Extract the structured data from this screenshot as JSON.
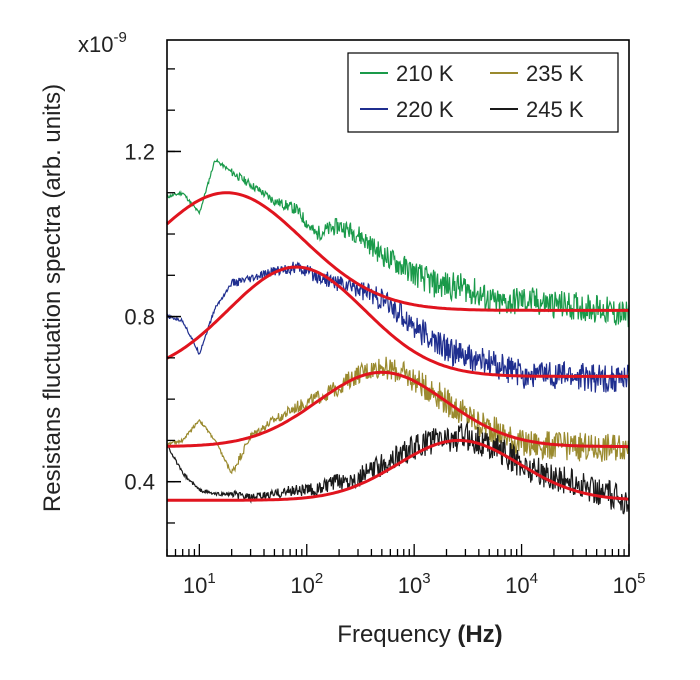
{
  "chart_data": {
    "type": "line",
    "x_scale": "log",
    "xlim": [
      5,
      100000
    ],
    "ylim": [
      0.22,
      1.47
    ],
    "y_multiplier": "x10",
    "y_multiplier_exp": "-9",
    "xlabel": "Frequency",
    "xlabel_unit": "(Hz)",
    "ylabel": "Resistans fluctuation spectra (arb. units)",
    "yticks": [
      {
        "value": 0.4,
        "label": "0.4"
      },
      {
        "value": 0.8,
        "label": "0.8"
      },
      {
        "value": 1.2,
        "label": "1.2"
      }
    ],
    "xticks": [
      {
        "value": 10,
        "base": "10",
        "exp": "1"
      },
      {
        "value": 100,
        "base": "10",
        "exp": "2"
      },
      {
        "value": 1000,
        "base": "10",
        "exp": "3"
      },
      {
        "value": 10000,
        "base": "10",
        "exp": "4"
      },
      {
        "value": 100000,
        "base": "10",
        "exp": "5"
      }
    ],
    "legend_position": "top-right",
    "grid": false,
    "series": [
      {
        "name": "210 K",
        "color": "#1a9a4a",
        "fit": {
          "base": 0.815,
          "amp": 0.285,
          "peak_hz": 18,
          "width": 1.0
        },
        "points": [
          [
            5,
            1.09
          ],
          [
            7,
            1.1
          ],
          [
            10,
            1.05
          ],
          [
            14,
            1.18
          ],
          [
            20,
            1.15
          ],
          [
            30,
            1.12
          ],
          [
            50,
            1.08
          ],
          [
            80,
            1.06
          ],
          [
            120,
            1.0
          ],
          [
            200,
            1.02
          ],
          [
            300,
            1.0
          ],
          [
            500,
            0.95
          ],
          [
            800,
            0.92
          ],
          [
            1500,
            0.88
          ],
          [
            3000,
            0.87
          ],
          [
            6000,
            0.83
          ],
          [
            10000,
            0.84
          ],
          [
            20000,
            0.83
          ],
          [
            50000,
            0.82
          ],
          [
            100000,
            0.8
          ]
        ]
      },
      {
        "name": "220 K",
        "color": "#1f2e8f",
        "fit": {
          "base": 0.655,
          "amp": 0.265,
          "peak_hz": 80,
          "width": 0.9
        },
        "points": [
          [
            5,
            0.8
          ],
          [
            7,
            0.79
          ],
          [
            10,
            0.71
          ],
          [
            14,
            0.82
          ],
          [
            20,
            0.88
          ],
          [
            30,
            0.89
          ],
          [
            50,
            0.91
          ],
          [
            80,
            0.92
          ],
          [
            120,
            0.9
          ],
          [
            200,
            0.88
          ],
          [
            300,
            0.87
          ],
          [
            500,
            0.84
          ],
          [
            800,
            0.8
          ],
          [
            1500,
            0.74
          ],
          [
            3000,
            0.7
          ],
          [
            6000,
            0.68
          ],
          [
            10000,
            0.66
          ],
          [
            20000,
            0.66
          ],
          [
            50000,
            0.65
          ],
          [
            100000,
            0.65
          ]
        ]
      },
      {
        "name": "235 K",
        "color": "#9a8a2e",
        "fit": {
          "base": 0.485,
          "amp": 0.18,
          "peak_hz": 500,
          "width": 0.85
        },
        "points": [
          [
            5,
            0.49
          ],
          [
            7,
            0.5
          ],
          [
            10,
            0.55
          ],
          [
            14,
            0.5
          ],
          [
            20,
            0.42
          ],
          [
            30,
            0.51
          ],
          [
            50,
            0.55
          ],
          [
            80,
            0.58
          ],
          [
            120,
            0.6
          ],
          [
            200,
            0.63
          ],
          [
            300,
            0.66
          ],
          [
            500,
            0.68
          ],
          [
            800,
            0.66
          ],
          [
            1500,
            0.62
          ],
          [
            3000,
            0.56
          ],
          [
            6000,
            0.52
          ],
          [
            10000,
            0.49
          ],
          [
            20000,
            0.49
          ],
          [
            50000,
            0.48
          ],
          [
            100000,
            0.49
          ]
        ]
      },
      {
        "name": "245 K",
        "color": "#1a1a1a",
        "fit": {
          "base": 0.355,
          "amp": 0.145,
          "peak_hz": 2600,
          "width": 0.8
        },
        "points": [
          [
            5,
            0.49
          ],
          [
            7,
            0.42
          ],
          [
            10,
            0.38
          ],
          [
            14,
            0.37
          ],
          [
            20,
            0.37
          ],
          [
            30,
            0.36
          ],
          [
            50,
            0.37
          ],
          [
            80,
            0.38
          ],
          [
            120,
            0.38
          ],
          [
            200,
            0.4
          ],
          [
            300,
            0.41
          ],
          [
            500,
            0.44
          ],
          [
            800,
            0.47
          ],
          [
            1500,
            0.5
          ],
          [
            3000,
            0.51
          ],
          [
            6000,
            0.48
          ],
          [
            10000,
            0.44
          ],
          [
            20000,
            0.41
          ],
          [
            50000,
            0.38
          ],
          [
            100000,
            0.35
          ]
        ]
      }
    ],
    "fit_color": "#e0141e"
  }
}
